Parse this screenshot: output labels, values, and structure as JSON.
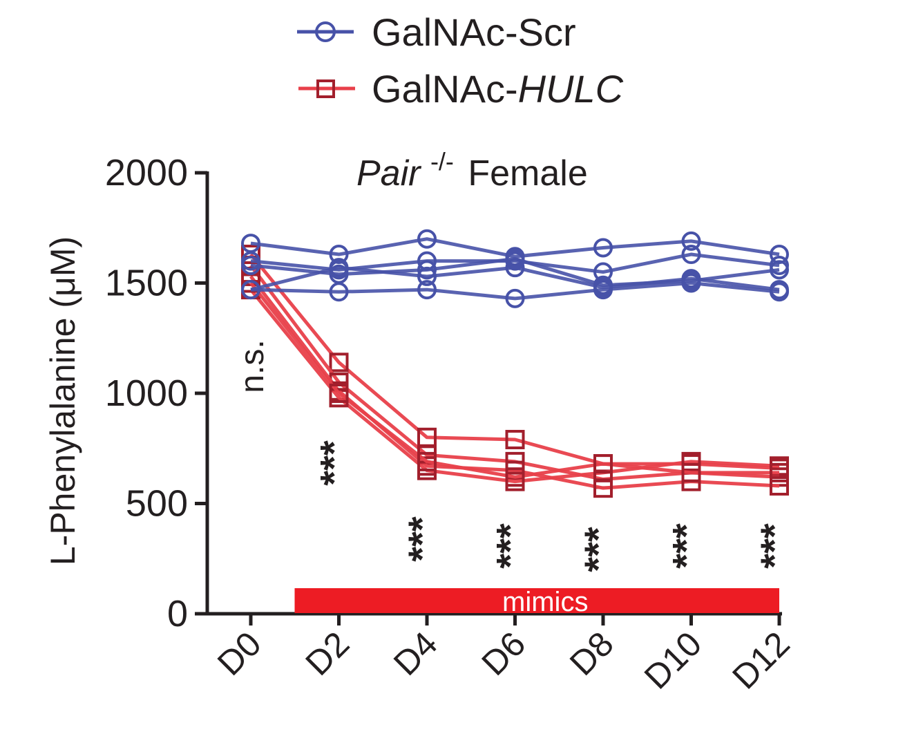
{
  "chart_data": {
    "type": "line",
    "title": "Female",
    "title_prefix": "Pair",
    "title_superscript": "-/-",
    "ylabel": "L-Phenylalanine (μM)",
    "xlabel": "",
    "categories": [
      "D0",
      "D2",
      "D4",
      "D6",
      "D8",
      "D10",
      "D12"
    ],
    "ylim": [
      0,
      2000
    ],
    "yticks": [
      "0",
      "500",
      "1000",
      "1500",
      "2000"
    ],
    "grid": false,
    "legend_position": "top",
    "legend": [
      {
        "label_plain": "GalNAc-Scr",
        "label_italic": "",
        "color": "#4752a8",
        "marker": "circle"
      },
      {
        "label_plain": "GalNAc-",
        "label_italic": "HULC",
        "color": "#e8404a",
        "marker_color": "#a21f2c",
        "marker": "square"
      }
    ],
    "series": [
      {
        "group": "GalNAc-Scr",
        "values": [
          1680,
          1630,
          1700,
          1620,
          1660,
          1690,
          1630
        ]
      },
      {
        "group": "GalNAc-Scr",
        "values": [
          1600,
          1560,
          1600,
          1600,
          1550,
          1630,
          1580
        ]
      },
      {
        "group": "GalNAc-Scr",
        "values": [
          1580,
          1540,
          1560,
          1610,
          1490,
          1510,
          1560
        ]
      },
      {
        "group": "GalNAc-Scr",
        "values": [
          1470,
          1460,
          1470,
          1430,
          1470,
          1500,
          1460
        ]
      },
      {
        "group": "GalNAc-Scr",
        "values": [
          1470,
          1570,
          1530,
          1570,
          1480,
          1520,
          1470
        ]
      },
      {
        "group": "GalNAc-HULC",
        "values": [
          1630,
          1140,
          800,
          790,
          680,
          680,
          660
        ]
      },
      {
        "group": "GalNAc-HULC",
        "values": [
          1580,
          1050,
          720,
          690,
          610,
          640,
          620
        ]
      },
      {
        "group": "GalNAc-HULC",
        "values": [
          1530,
          1010,
          670,
          650,
          570,
          600,
          580
        ]
      },
      {
        "group": "GalNAc-HULC",
        "values": [
          1470,
          980,
          650,
          600,
          640,
          690,
          670
        ]
      },
      {
        "group": "GalNAc-HULC",
        "values": [
          1500,
          1000,
          690,
          620,
          680,
          640,
          640
        ]
      }
    ],
    "annotations": [
      {
        "text": "n.s.",
        "category": "D0"
      },
      {
        "text": "***",
        "category": "D2"
      },
      {
        "text": "***",
        "category": "D4"
      },
      {
        "text": "***",
        "category": "D6"
      },
      {
        "text": "***",
        "category": "D8"
      },
      {
        "text": "***",
        "category": "D10"
      },
      {
        "text": "***",
        "category": "D12"
      }
    ],
    "bar_label": "mimics",
    "bar_range": [
      "D2",
      "D12"
    ],
    "bar_color": "#ed1c24"
  }
}
